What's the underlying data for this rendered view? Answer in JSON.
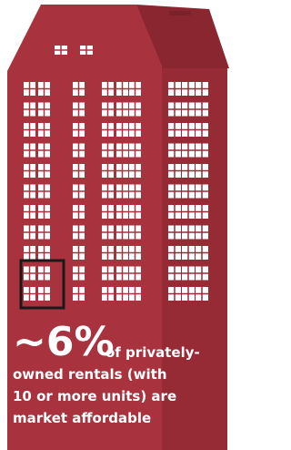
{
  "headline": "~6%",
  "lines": [
    "of privately-",
    "owned rentals (with",
    "10 or more units) are",
    "market affordable"
  ]
}
